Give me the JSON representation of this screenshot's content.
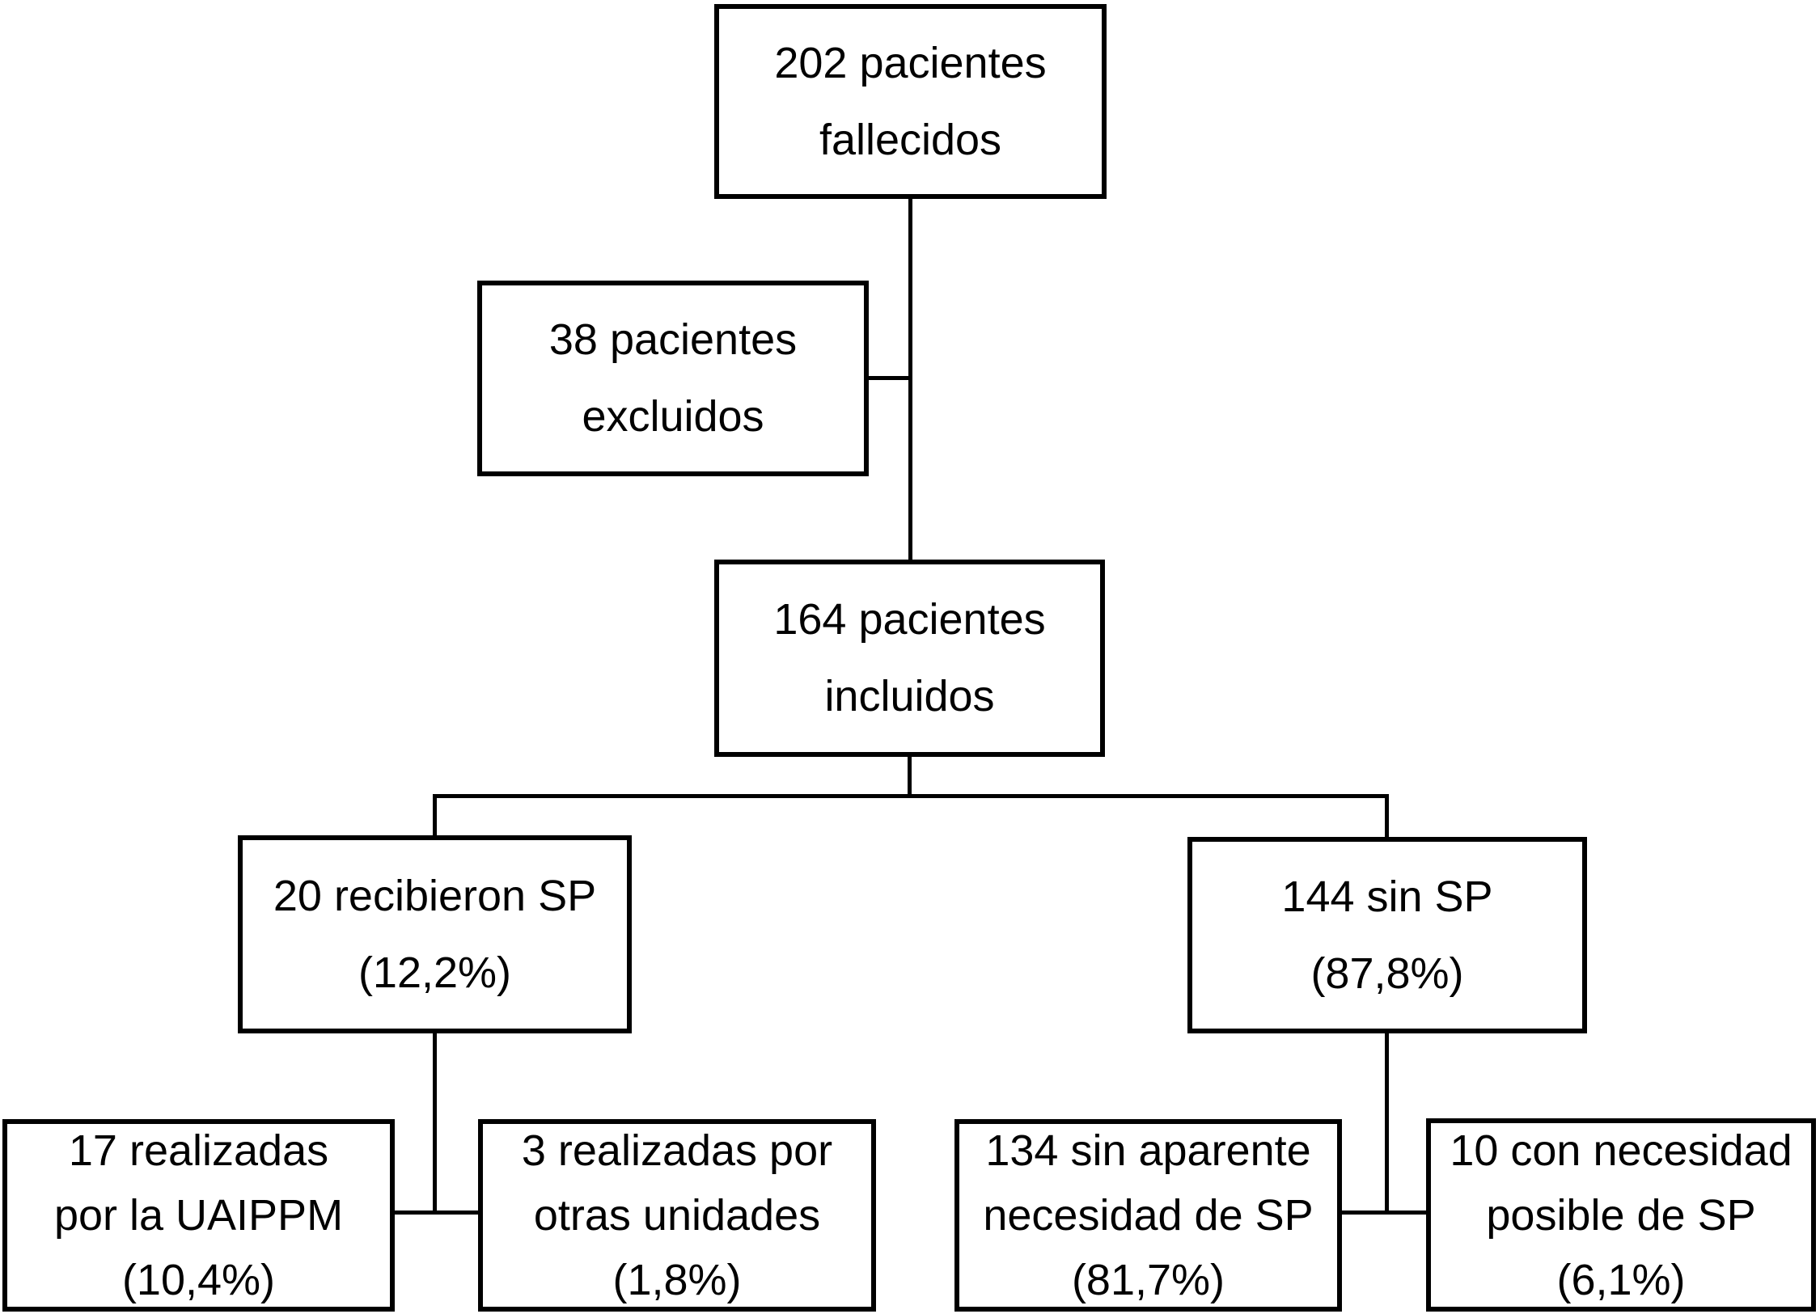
{
  "diagram": {
    "type": "patient-flow-chart",
    "language": "es",
    "colors": {
      "background": "#ffffff",
      "border": "#000000",
      "text": "#000000"
    },
    "nodes": [
      {
        "id": "deceased",
        "lines": [
          "202 pacientes",
          "fallecidos"
        ]
      },
      {
        "id": "excluded",
        "lines": [
          "38 pacientes",
          "excluidos"
        ]
      },
      {
        "id": "included",
        "lines": [
          "164 pacientes",
          "incluidos"
        ]
      },
      {
        "id": "received-sp",
        "lines": [
          "20 recibieron SP",
          "(12,2%)"
        ]
      },
      {
        "id": "no-sp",
        "lines": [
          "144 sin SP",
          "(87,8%)"
        ]
      },
      {
        "id": "uaippm",
        "lines": [
          "17 realizadas",
          "por la UAIPPM",
          "(10,4%)"
        ]
      },
      {
        "id": "other-units",
        "lines": [
          "3 realizadas por",
          "otras unidades",
          "(1,8%)"
        ]
      },
      {
        "id": "no-apparent-need",
        "lines": [
          "134 sin aparente",
          "necesidad de SP",
          "(81,7%)"
        ]
      },
      {
        "id": "possible-need",
        "lines": [
          "10 con necesidad",
          "posible de SP",
          "(6,1%)"
        ]
      }
    ],
    "edges": [
      {
        "from": "deceased",
        "to": "included"
      },
      {
        "from": "deceased",
        "to": "excluded"
      },
      {
        "from": "included",
        "to": "received-sp"
      },
      {
        "from": "included",
        "to": "no-sp"
      },
      {
        "from": "received-sp",
        "to": "uaippm"
      },
      {
        "from": "received-sp",
        "to": "other-units"
      },
      {
        "from": "no-sp",
        "to": "no-apparent-need"
      },
      {
        "from": "no-sp",
        "to": "possible-need"
      }
    ]
  }
}
